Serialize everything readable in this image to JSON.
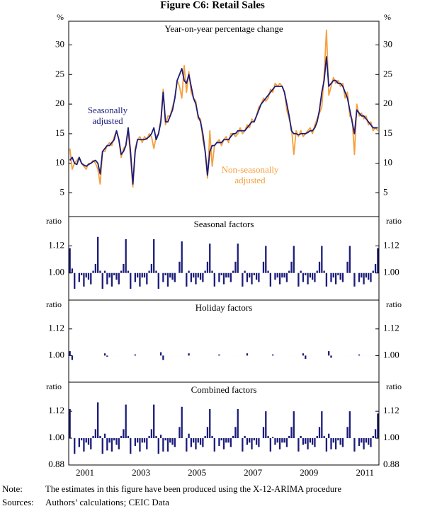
{
  "title": "Figure C6: Retail Sales",
  "note_label": "Note:",
  "note": "The estimates in this figure have been produced using the X-12-ARIMA procedure",
  "sources_label": "Sources:",
  "sources": "Authors’ calculations; CEIC Data",
  "chart_data": [
    {
      "type": "line",
      "subtitle": "Year-on-year percentage change",
      "y_label": "%",
      "ylim": [
        1,
        34
      ],
      "yticks": [
        5,
        10,
        15,
        20,
        25,
        30
      ],
      "series": [
        {
          "name": "Seasonally adjusted",
          "color": "#1c1c7a",
          "values": [
            10.5,
            11,
            10,
            9.8,
            11,
            10,
            9.7,
            9.5,
            9.8,
            10,
            10.3,
            10.5,
            10,
            8.2,
            12,
            12.5,
            13,
            13,
            13.5,
            14,
            15.5,
            14,
            11.5,
            12,
            13,
            16,
            12,
            6.5,
            12,
            14,
            14,
            14,
            14,
            14.2,
            14.5,
            15,
            16,
            14,
            15,
            17,
            22,
            17,
            17,
            18,
            19,
            21,
            24,
            25,
            26,
            24,
            23.5,
            25,
            23,
            21,
            20,
            18,
            17,
            15,
            12,
            8,
            12,
            13,
            13,
            13.5,
            13.5,
            13.5,
            14,
            14,
            14,
            14.5,
            15,
            15,
            15.5,
            15.5,
            15.5,
            15.5,
            16,
            16.5,
            17,
            17,
            18,
            19,
            20,
            20.5,
            21,
            21.5,
            22,
            22.5,
            23,
            23,
            23,
            23,
            22,
            20,
            18,
            15.5,
            15,
            15,
            14.8,
            15,
            15,
            15,
            15.2,
            15.5,
            15.5,
            16,
            17,
            19,
            22,
            24,
            28,
            23,
            23.5,
            24,
            24,
            23.5,
            23.5,
            23,
            22,
            21,
            19,
            17,
            15,
            19,
            18.5,
            18,
            18,
            17.5,
            17,
            16.5,
            16,
            16,
            16
          ]
        },
        {
          "name": "Non-seasonally adjusted",
          "color": "#f5a03c",
          "values": [
            12.5,
            9,
            10,
            10.5,
            11,
            10,
            9.5,
            9,
            10,
            10,
            10.5,
            10,
            9,
            6.5,
            12,
            12,
            13,
            13.5,
            13,
            14.5,
            15.5,
            14,
            11,
            12.5,
            13,
            15.5,
            11,
            6,
            12.5,
            14,
            14.5,
            13.5,
            14.5,
            14,
            15,
            14.5,
            12.5,
            14.5,
            15,
            17.5,
            22.5,
            16.5,
            18,
            18,
            19.5,
            21,
            24,
            23,
            21,
            26.5,
            22,
            25.5,
            22,
            21,
            20.5,
            17.5,
            17.5,
            14,
            12,
            7.5,
            15.5,
            9.5,
            13,
            13.5,
            14,
            13,
            14,
            14.5,
            13.5,
            15,
            15,
            14.5,
            15,
            16,
            15,
            15.5,
            16.5,
            16,
            17.5,
            17,
            18,
            19.5,
            20,
            21,
            20.5,
            21,
            22.5,
            22,
            23.5,
            23,
            23.5,
            23,
            22,
            19,
            17.5,
            16,
            11.5,
            15.5,
            14.5,
            15.5,
            14.5,
            15,
            15.5,
            16,
            15,
            16.5,
            17.5,
            18.5,
            19.5,
            25,
            32.5,
            21.5,
            23,
            24.5,
            23.5,
            24,
            23,
            23.5,
            21,
            22,
            18,
            17.5,
            11.5,
            20,
            18,
            18.5,
            17.5,
            18,
            16.5,
            17,
            15.5,
            16,
            15.5
          ]
        }
      ]
    },
    {
      "type": "bar",
      "subtitle": "Seasonal factors",
      "y_label": "ratio",
      "color": "#1c1c7a",
      "baseline": 1,
      "ylim": [
        0.88,
        1.25
      ],
      "yticks": [
        {
          "value": 1,
          "label": "1.00"
        },
        {
          "value": 1.12,
          "label": "1.12"
        }
      ],
      "values": [
        1.11,
        1.02,
        0.93,
        1.0,
        0.96,
        0.99,
        0.94,
        0.98,
        0.97,
        0.95,
        1.01,
        1.04,
        1.16,
        1.01,
        0.93,
        1.01,
        0.95,
        0.98,
        0.94,
        0.99,
        0.97,
        0.95,
        1.01,
        1.04,
        1.15,
        1.01,
        0.93,
        1.0,
        0.96,
        0.98,
        0.94,
        0.98,
        0.98,
        0.95,
        1.01,
        1.04,
        1.15,
        1.01,
        0.93,
        1.0,
        0.96,
        0.99,
        0.94,
        0.98,
        0.97,
        0.96,
        1.0,
        1.05,
        1.14,
        1.0,
        0.94,
        1.01,
        0.96,
        0.98,
        0.95,
        0.98,
        0.97,
        0.96,
        1.01,
        1.05,
        1.13,
        1.01,
        0.94,
        1.0,
        0.96,
        0.99,
        0.95,
        0.98,
        0.98,
        0.96,
        1.01,
        1.05,
        1.13,
        1.0,
        0.94,
        1.01,
        0.96,
        0.98,
        0.95,
        0.99,
        0.97,
        0.96,
        1.0,
        1.05,
        1.12,
        1.01,
        0.94,
        1.0,
        0.97,
        0.98,
        0.95,
        0.98,
        0.98,
        0.96,
        1.01,
        1.05,
        1.12,
        1.0,
        0.94,
        1.01,
        0.96,
        0.99,
        0.95,
        0.98,
        0.97,
        0.96,
        1.01,
        1.05,
        1.12,
        1.01,
        0.94,
        1.0,
        0.96,
        0.98,
        0.95,
        0.99,
        0.97,
        0.96,
        1.0,
        1.05,
        1.12,
        1.0,
        0.94,
        1.0,
        0.96,
        0.98,
        0.95,
        0.98,
        0.97,
        0.96,
        1.01,
        1.04,
        1.11
      ]
    },
    {
      "type": "bar",
      "subtitle": "Holiday factors",
      "y_label": "ratio",
      "color": "#1c1c7a",
      "baseline": 1,
      "ylim": [
        0.88,
        1.25
      ],
      "yticks": [
        {
          "value": 1,
          "label": "1.00"
        },
        {
          "value": 1.12,
          "label": "1.12"
        }
      ],
      "values": [
        1.02,
        0.98,
        1,
        1,
        1,
        1,
        1,
        1,
        1,
        1,
        1,
        1,
        1,
        1,
        1,
        1.01,
        0.995,
        1,
        1,
        1,
        1,
        1,
        1,
        1,
        1,
        1,
        1,
        1,
        1.005,
        1,
        1,
        1,
        1,
        1,
        1,
        1,
        1,
        1,
        1,
        1.015,
        0.98,
        1,
        1,
        1,
        1,
        1,
        1,
        1,
        1,
        1,
        1,
        1.01,
        1,
        1,
        1,
        1,
        1,
        1,
        1,
        1,
        1,
        1,
        1,
        1,
        1.005,
        1,
        1,
        1,
        1,
        1,
        1,
        1,
        1,
        1,
        1,
        1,
        1.01,
        1,
        1,
        1,
        1,
        1,
        1,
        1,
        1,
        1,
        1,
        1.005,
        1,
        1,
        1,
        1,
        1,
        1,
        1,
        1,
        1,
        1,
        1,
        1,
        1.01,
        0.985,
        1,
        1,
        1,
        1,
        1,
        1,
        1,
        1,
        1,
        1.02,
        0.99,
        1,
        1,
        1,
        1,
        1,
        1,
        1,
        1,
        1,
        1,
        1,
        1.005,
        1,
        1,
        1,
        1,
        1,
        1,
        1,
        1
      ]
    },
    {
      "type": "bar",
      "subtitle": "Combined factors",
      "y_label": "ratio",
      "color": "#1c1c7a",
      "baseline": 1,
      "ylim": [
        0.88,
        1.25
      ],
      "yticks": [
        {
          "value": 0.88,
          "label": "0.88"
        },
        {
          "value": 1,
          "label": "1.00"
        },
        {
          "value": 1.12,
          "label": "1.12"
        }
      ],
      "categories": [
        null,
        null,
        null,
        null,
        null,
        null,
        null,
        "2001",
        null,
        null,
        null,
        null,
        null,
        null,
        null,
        null,
        null,
        null,
        null,
        null,
        null,
        null,
        null,
        null,
        null,
        null,
        null,
        null,
        null,
        null,
        null,
        "2003",
        null,
        null,
        null,
        null,
        null,
        null,
        null,
        null,
        null,
        null,
        null,
        null,
        null,
        null,
        null,
        null,
        null,
        null,
        null,
        null,
        null,
        null,
        null,
        "2005",
        null,
        null,
        null,
        null,
        null,
        null,
        null,
        null,
        null,
        null,
        null,
        null,
        null,
        null,
        null,
        null,
        null,
        null,
        null,
        null,
        null,
        null,
        null,
        "2007",
        null,
        null,
        null,
        null,
        null,
        null,
        null,
        null,
        null,
        null,
        null,
        null,
        null,
        null,
        null,
        null,
        null,
        null,
        null,
        null,
        null,
        null,
        null,
        "2009",
        null,
        null,
        null,
        null,
        null,
        null,
        null,
        null,
        null,
        null,
        null,
        null,
        null,
        null,
        null,
        null,
        null,
        null,
        null,
        null,
        null,
        null,
        null,
        "2011",
        null,
        null,
        null,
        null,
        null
      ],
      "values": [
        1.13,
        1.0,
        0.93,
        1.0,
        0.96,
        0.99,
        0.94,
        0.98,
        0.97,
        0.95,
        1.01,
        1.04,
        1.16,
        1.01,
        0.93,
        1.02,
        0.945,
        0.98,
        0.94,
        0.99,
        0.97,
        0.95,
        1.01,
        1.04,
        1.15,
        1.01,
        0.93,
        1.0,
        0.965,
        0.98,
        0.94,
        0.98,
        0.98,
        0.95,
        1.01,
        1.04,
        1.15,
        1.01,
        0.93,
        1.015,
        0.94,
        0.99,
        0.94,
        0.98,
        0.97,
        0.96,
        1.0,
        1.05,
        1.14,
        1.0,
        0.94,
        1.02,
        0.96,
        0.98,
        0.95,
        0.98,
        0.97,
        0.96,
        1.01,
        1.05,
        1.13,
        1.01,
        0.94,
        1.0,
        0.965,
        0.99,
        0.95,
        0.98,
        0.98,
        0.96,
        1.01,
        1.05,
        1.13,
        1.0,
        0.94,
        1.01,
        0.97,
        0.98,
        0.95,
        0.99,
        0.97,
        0.96,
        1.0,
        1.05,
        1.12,
        1.01,
        0.94,
        1.005,
        0.97,
        0.98,
        0.95,
        0.98,
        0.98,
        0.96,
        1.01,
        1.05,
        1.12,
        1.0,
        0.94,
        1.01,
        0.97,
        0.975,
        0.95,
        0.98,
        0.97,
        0.96,
        1.01,
        1.05,
        1.12,
        1.01,
        0.94,
        1.02,
        0.95,
        0.98,
        0.95,
        0.99,
        0.97,
        0.96,
        1.0,
        1.05,
        1.12,
        1.0,
        0.94,
        1.0,
        0.965,
        0.98,
        0.95,
        0.98,
        0.97,
        0.96,
        1.01,
        1.04,
        1.11
      ]
    }
  ]
}
